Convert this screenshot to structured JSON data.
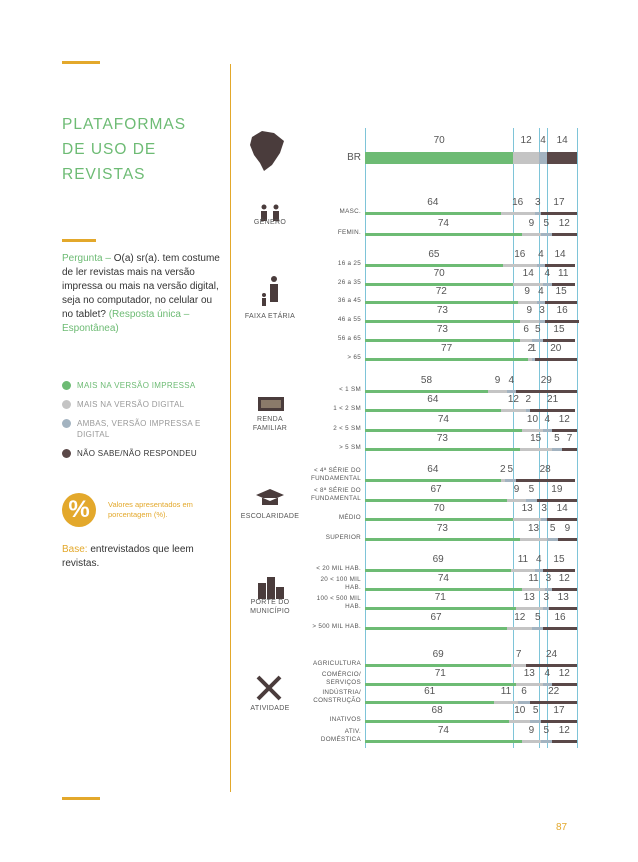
{
  "sidebar": {
    "title": "PLATAFORMAS DE USO DE REVISTAS",
    "question_label": "Pergunta –",
    "question": "O(a) sr(a). tem costume de ler revistas mais na versão impressa ou mais na versão digital, seja no computador, no celular ou no tablet?",
    "question_note": "(Resposta única – Espontânea)",
    "percent_icon": "%",
    "percent_note": "Valores apresentados em porcentagem (%).",
    "base_label": "Base:",
    "base": "entrevistados que leem revistas."
  },
  "page_number": "87",
  "chart_data": {
    "type": "bar",
    "orientation": "horizontal",
    "stacked": true,
    "xlim": [
      0,
      100
    ],
    "group_labels": [
      "GÊNERO",
      "FAIXA ETÁRIA",
      "RENDA FAMILIAR",
      "ESCOLARIDADE",
      "PORTE DO MUNICÍPIO",
      "ATIVIDADE"
    ],
    "categories": [
      "BR",
      "MASC.",
      "FEMIN.",
      "16 a 25",
      "26 a 35",
      "36 a 45",
      "46 a 55",
      "56 a 65",
      "> 65",
      "< 1 SM",
      "1 < 2 SM",
      "2 < 5 SM",
      "> 5 SM",
      "< 4ª SÉRIE DO FUNDAMENTAL",
      "< 8ª SÉRIE DO FUNDAMENTAL",
      "MÉDIO",
      "SUPERIOR",
      "< 20 MIL HAB.",
      "20 < 100 MIL HAB.",
      "100 < 500 MIL HAB.",
      "> 500 MIL HAB.",
      "AGRICULTURA",
      "COMÉRCIO/ SERVIÇOS",
      "INDÚSTRIA/ CONSTRUÇÃO",
      "INATIVOS",
      "ATIV. DOMÉSTICA"
    ],
    "series": [
      {
        "name": "MAIS NA VERSÃO IMPRESSA",
        "color": "#6dbb74",
        "values": [
          70,
          64,
          74,
          65,
          70,
          72,
          73,
          73,
          77,
          58,
          64,
          74,
          73,
          64,
          67,
          70,
          73,
          69,
          74,
          71,
          67,
          69,
          71,
          61,
          68,
          74
        ]
      },
      {
        "name": "MAIS NA VERSÃO DIGITAL",
        "color": "#c4c4c4",
        "values": [
          12,
          16,
          9,
          16,
          14,
          9,
          9,
          6,
          2,
          9,
          12,
          10,
          15,
          2,
          9,
          13,
          13,
          11,
          11,
          13,
          12,
          7,
          13,
          11,
          10,
          9
        ]
      },
      {
        "name": "AMBAS, VERSÃO IMPRESSA E DIGITAL",
        "color": "#a3b3c0",
        "values": [
          4,
          3,
          5,
          4,
          4,
          4,
          3,
          5,
          1,
          4,
          2,
          4,
          5,
          5,
          5,
          3,
          5,
          4,
          3,
          3,
          5,
          null,
          4,
          6,
          5,
          5
        ]
      },
      {
        "name": "NÃO SABE/NÃO RESPONDEU",
        "color": "#5a4848",
        "values": [
          14,
          17,
          12,
          14,
          11,
          15,
          16,
          15,
          20,
          29,
          21,
          12,
          7,
          28,
          19,
          14,
          9,
          15,
          12,
          13,
          16,
          24,
          12,
          22,
          17,
          12
        ]
      }
    ]
  }
}
